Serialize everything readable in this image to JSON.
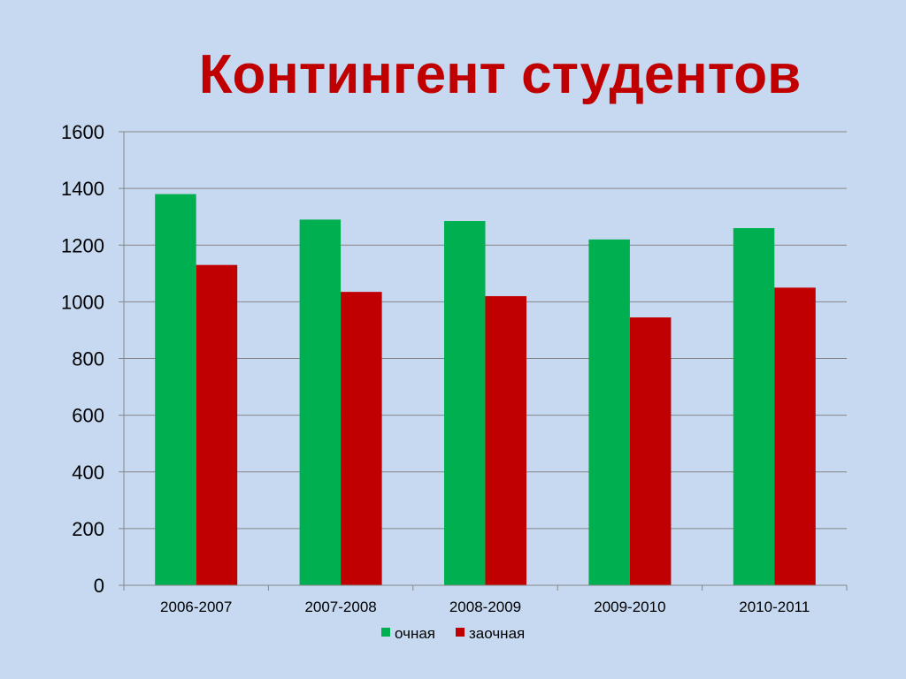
{
  "slide": {
    "title": "Контингент студентов"
  },
  "chart_data": {
    "type": "bar",
    "title": "Контингент студентов",
    "categories": [
      "2006-2007",
      "2007-2008",
      "2008-2009",
      "2009-2010",
      "2010-2011"
    ],
    "series": [
      {
        "name": "очная",
        "color": "#00b050",
        "values": [
          1380,
          1290,
          1285,
          1220,
          1260
        ]
      },
      {
        "name": "заочная",
        "color": "#c00000",
        "values": [
          1130,
          1035,
          1020,
          945,
          1050
        ]
      }
    ],
    "ylim": [
      0,
      1600
    ],
    "yticks": [
      0,
      200,
      400,
      600,
      800,
      1000,
      1200,
      1400,
      1600
    ],
    "xlabel": "",
    "ylabel": "",
    "grid": true,
    "legend": "bottom"
  },
  "colors": {
    "background": "#c6d9f1",
    "title": "#c00000",
    "gridline": "#868686"
  }
}
